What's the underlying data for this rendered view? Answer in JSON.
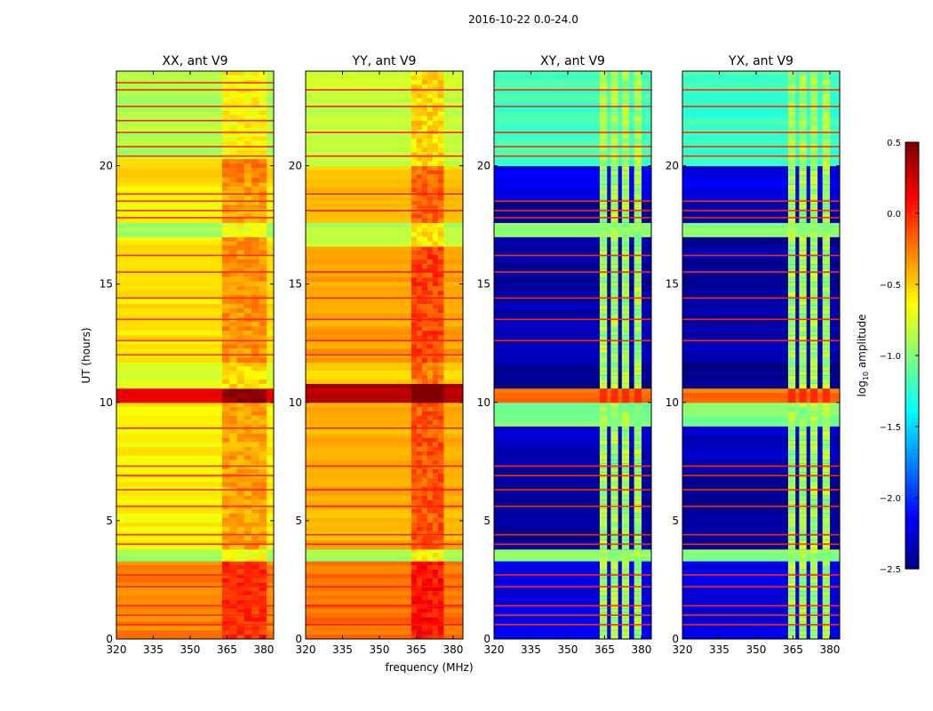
{
  "chart_data": {
    "type": "heatmap",
    "title": "2016-10-22 0.0-24.0",
    "xlabel": "frequency (MHz)",
    "ylabel": "UT (hours)",
    "xlim": [
      320,
      384
    ],
    "ylim": [
      0,
      24
    ],
    "xticks": [
      "320",
      "335",
      "350",
      "365",
      "380"
    ],
    "xtick_values": [
      320,
      335,
      350,
      365,
      380
    ],
    "yticks": [
      "0",
      "5",
      "10",
      "15",
      "20"
    ],
    "ytick_values": [
      0,
      5,
      10,
      15,
      20
    ],
    "colormap": "jet",
    "colorbar": {
      "label": "log10 amplitude",
      "label_main": "log",
      "label_sub": "10",
      "label_rest": " amplitude",
      "range": [
        -2.5,
        0.5
      ],
      "ticks": [
        "0.5",
        "0.0",
        "−0.5",
        "−1.0",
        "−1.5",
        "−2.0",
        "−2.5"
      ],
      "tick_values": [
        0.5,
        0.0,
        -0.5,
        -1.0,
        -1.5,
        -2.0,
        -2.5
      ]
    },
    "panels": [
      {
        "title": "XX, ant V9",
        "bands": [
          [
            0,
            3.3,
            -0.25
          ],
          [
            3.3,
            3.8,
            -0.9
          ],
          [
            3.8,
            10,
            -0.6
          ],
          [
            10,
            10.6,
            0.25
          ],
          [
            10.6,
            11.7,
            -0.75
          ],
          [
            11.7,
            17.0,
            -0.55
          ],
          [
            17.0,
            17.6,
            -0.9
          ],
          [
            17.6,
            19.3,
            -0.6
          ],
          [
            19.3,
            20.3,
            -0.5
          ],
          [
            20.3,
            24,
            -0.85
          ]
        ],
        "rfi_range": [
          363,
          381
        ],
        "rfi_boost": 0.3,
        "lines": [
          0.6,
          1.0,
          1.4,
          2.2,
          2.7,
          4.0,
          4.4,
          5.6,
          6.3,
          6.9,
          7.3,
          8.9,
          12.0,
          12.6,
          13.5,
          14.4,
          15.5,
          16.2,
          17.8,
          18.1,
          18.5,
          18.8,
          20.4,
          20.8,
          21.4,
          21.9,
          22.5,
          23.2,
          23.5
        ],
        "line_value": 0.0
      },
      {
        "title": "YY, ant V9",
        "bands": [
          [
            0,
            3.3,
            -0.2
          ],
          [
            3.3,
            3.8,
            -0.9
          ],
          [
            3.8,
            10,
            -0.4
          ],
          [
            10,
            10.8,
            0.35
          ],
          [
            10.8,
            11.7,
            -0.5
          ],
          [
            11.7,
            16.6,
            -0.35
          ],
          [
            16.6,
            17.6,
            -0.85
          ],
          [
            17.6,
            20.0,
            -0.45
          ],
          [
            20.0,
            24,
            -0.8
          ]
        ],
        "rfi_range": [
          363,
          376
        ],
        "rfi_boost": 0.35,
        "lines": [
          0.6,
          1.4,
          2.2,
          4.0,
          4.4,
          5.6,
          6.3,
          7.3,
          8.9,
          12.0,
          12.6,
          13.5,
          14.4,
          15.5,
          18.1,
          18.8,
          20.4,
          21.4,
          22.5,
          23.2
        ],
        "line_value": 0.05
      },
      {
        "title": "XY, ant V9",
        "bands": [
          [
            0,
            3.3,
            -2.2
          ],
          [
            3.3,
            3.8,
            -0.95
          ],
          [
            3.8,
            7.6,
            -2.4
          ],
          [
            7.6,
            9.0,
            -2.3
          ],
          [
            9.0,
            10,
            -1.0
          ],
          [
            10,
            10.6,
            -0.2
          ],
          [
            10.6,
            11.7,
            -2.45
          ],
          [
            11.7,
            14.3,
            -2.35
          ],
          [
            14.3,
            17.0,
            -2.4
          ],
          [
            17.0,
            17.6,
            -0.95
          ],
          [
            17.6,
            18.6,
            -2.4
          ],
          [
            18.6,
            20.0,
            -2.2
          ],
          [
            20.0,
            24,
            -1.2
          ]
        ],
        "rfi_range": [
          363,
          381
        ],
        "rfi_value": -0.9,
        "rfi_channels": [
          [
            363,
            366
          ],
          [
            367.5,
            370.5
          ],
          [
            372,
            375
          ],
          [
            377,
            380
          ]
        ],
        "lines": [
          0.6,
          1.0,
          1.4,
          2.2,
          2.7,
          4.0,
          4.4,
          5.6,
          6.3,
          6.9,
          7.3,
          12.6,
          13.5,
          14.4,
          15.5,
          16.2,
          17.8,
          18.1,
          18.5,
          20.4,
          20.8,
          21.4,
          22.5,
          23.2
        ],
        "line_value": 0.0
      },
      {
        "title": "YX, ant V9",
        "bands": [
          [
            0,
            3.3,
            -2.2
          ],
          [
            3.3,
            3.8,
            -0.95
          ],
          [
            3.8,
            7.6,
            -2.4
          ],
          [
            7.6,
            9.0,
            -2.3
          ],
          [
            9.0,
            10,
            -1.0
          ],
          [
            10,
            10.6,
            -0.2
          ],
          [
            10.6,
            11.7,
            -2.45
          ],
          [
            11.7,
            14.3,
            -2.35
          ],
          [
            14.3,
            17.0,
            -2.4
          ],
          [
            17.0,
            17.6,
            -0.95
          ],
          [
            17.6,
            18.6,
            -2.4
          ],
          [
            18.6,
            20.0,
            -2.2
          ],
          [
            20.0,
            24,
            -1.2
          ]
        ],
        "rfi_range": [
          363,
          381
        ],
        "rfi_value": -0.9,
        "rfi_channels": [
          [
            363,
            366
          ],
          [
            367.5,
            370.5
          ],
          [
            372,
            375
          ],
          [
            377,
            380
          ]
        ],
        "lines": [
          0.6,
          1.0,
          1.4,
          2.2,
          2.7,
          4.0,
          4.4,
          5.6,
          6.3,
          6.9,
          7.3,
          12.6,
          13.5,
          14.4,
          15.5,
          16.2,
          17.8,
          18.1,
          18.5,
          20.4,
          20.8,
          21.4,
          22.5,
          23.2
        ],
        "line_value": 0.0
      }
    ]
  }
}
